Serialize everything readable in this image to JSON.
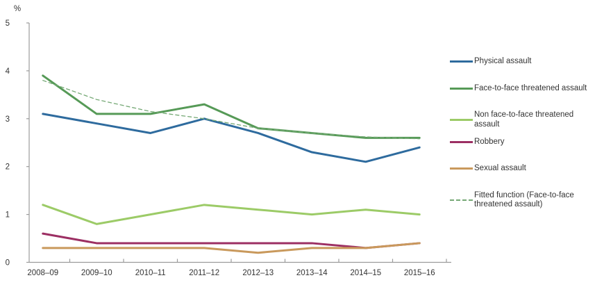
{
  "chart_data": {
    "type": "line",
    "title": "",
    "unit_label": "%",
    "categories": [
      "2008–09",
      "2009–10",
      "2010–11",
      "2011–12",
      "2012–13",
      "2013–14",
      "2014–15",
      "2015–16"
    ],
    "series": [
      {
        "name": "Physical assault",
        "color": "#2e6b9e",
        "style": "solid",
        "values": [
          3.1,
          2.9,
          2.7,
          3.0,
          2.7,
          2.3,
          2.1,
          2.4
        ]
      },
      {
        "name": "Face-to-face threatened assault",
        "color": "#569a57",
        "style": "solid",
        "values": [
          3.9,
          3.1,
          3.1,
          3.3,
          2.8,
          2.7,
          2.6,
          2.6
        ]
      },
      {
        "name": "Non face-to-face threatened assault",
        "color": "#9ccb67",
        "style": "solid",
        "values": [
          1.2,
          0.8,
          1.0,
          1.2,
          1.1,
          1.0,
          1.1,
          1.0
        ]
      },
      {
        "name": "Robbery",
        "color": "#9c2f63",
        "style": "solid",
        "values": [
          0.6,
          0.4,
          0.4,
          0.4,
          0.4,
          0.4,
          0.3,
          0.4
        ]
      },
      {
        "name": "Sexual assault",
        "color": "#c9995c",
        "style": "solid",
        "values": [
          0.3,
          0.3,
          0.3,
          0.3,
          0.2,
          0.3,
          0.3,
          0.4
        ]
      },
      {
        "name": "Fitted function (Face-to-face threatened assault)",
        "color": "#74a874",
        "style": "dashed",
        "values": [
          3.8,
          3.4,
          3.15,
          3.0,
          2.8,
          2.7,
          2.62,
          2.58
        ]
      }
    ],
    "y_axis": {
      "min": 0,
      "max": 5,
      "tick_interval": 1,
      "tick_labels": [
        "0",
        "1",
        "2",
        "3",
        "4",
        "5"
      ]
    },
    "x_axis": {
      "tick_labels": [
        "2008–09",
        "2009–10",
        "2010–11",
        "2011–12",
        "2012–13",
        "2013–14",
        "2014–15",
        "2015–16"
      ]
    },
    "legend_position": "right",
    "grid": false,
    "legend_entries": [
      "Physical assault",
      "Face-to-face threatened assault",
      "Non face-to-face threatened assault",
      "Robbery",
      "Sexual assault",
      "Fitted function (Face-to-face threatened assault)"
    ]
  },
  "style_tokens": {
    "axis_color": "#9b9b9b",
    "text_color": "#333333",
    "background": "#ffffff"
  }
}
